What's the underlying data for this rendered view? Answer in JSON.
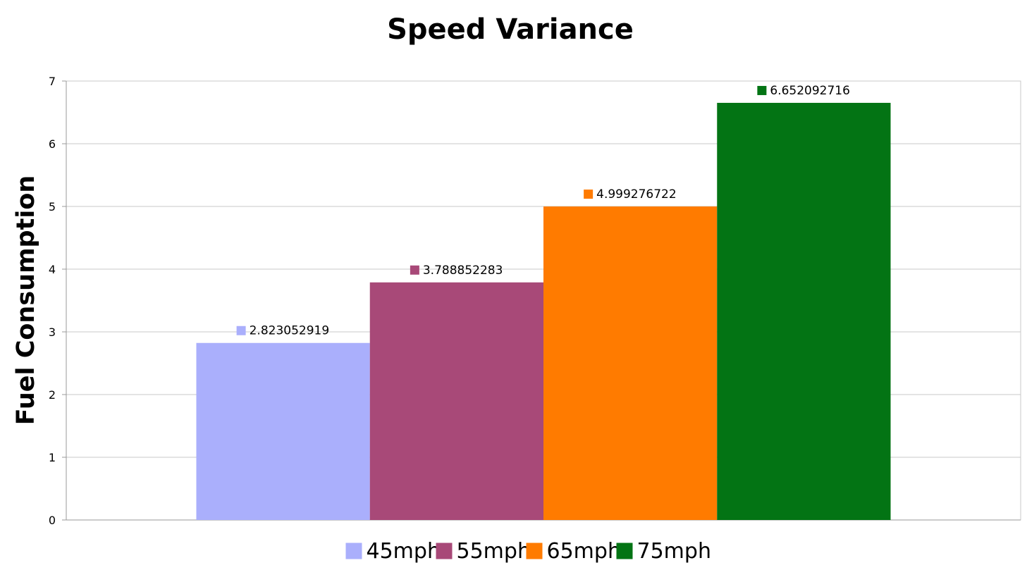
{
  "chart_data": {
    "type": "bar",
    "title": "Speed Variance",
    "xlabel": "",
    "ylabel": "Fuel Consumption",
    "ylim": [
      0,
      7
    ],
    "yticks": [
      0,
      1,
      2,
      3,
      4,
      5,
      6,
      7
    ],
    "grid": true,
    "legend_position": "bottom",
    "series": [
      {
        "name": "45mph",
        "value": 2.823052919,
        "label": "2.823052919",
        "color": "#aaaffc"
      },
      {
        "name": "55mph",
        "value": 3.788852283,
        "label": "3.788852283",
        "color": "#a84978"
      },
      {
        "name": "65mph",
        "value": 4.999276722,
        "label": "4.999276722",
        "color": "#ff7b00"
      },
      {
        "name": "75mph",
        "value": 6.652092716,
        "label": "6.652092716",
        "color": "#037414"
      }
    ]
  }
}
